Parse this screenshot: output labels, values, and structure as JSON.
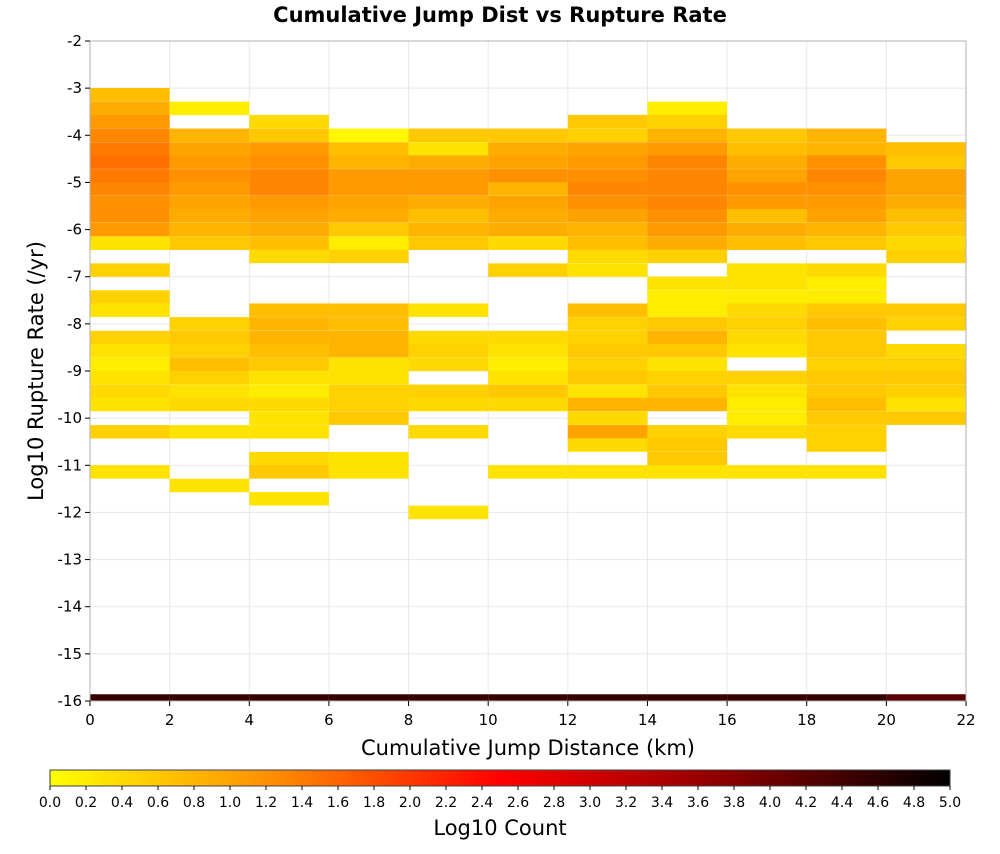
{
  "chart_data": {
    "type": "heatmap",
    "title": "Cumulative Jump Dist vs Rupture Rate",
    "xlabel": "Cumulative Jump Distance (km)",
    "ylabel": "Log10 Rupture Rate (/yr)",
    "xlim": [
      0,
      22
    ],
    "ylim": [
      -16,
      -2
    ],
    "x_ticks": [
      "0",
      "2",
      "4",
      "6",
      "8",
      "10",
      "12",
      "14",
      "16",
      "18",
      "20",
      "22"
    ],
    "y_ticks": [
      "-2",
      "-3",
      "-4",
      "-5",
      "-6",
      "-7",
      "-8",
      "-9",
      "-10",
      "-11",
      "-12",
      "-13",
      "-14",
      "-15",
      "-16"
    ],
    "grid": true,
    "colorbar": {
      "label": "Log10 Count",
      "range": [
        0,
        5
      ],
      "ticks": [
        "0.0",
        "0.2",
        "0.4",
        "0.6",
        "0.8",
        "1.0",
        "1.2",
        "1.4",
        "1.6",
        "1.8",
        "2.0",
        "2.2",
        "2.4",
        "2.6",
        "2.8",
        "3.0",
        "3.2",
        "3.4",
        "3.6",
        "3.8",
        "4.0",
        "4.2",
        "4.4",
        "4.6",
        "4.8",
        "5.0"
      ],
      "colors": [
        "#ffff00",
        "#ff8c00",
        "#ff0000",
        "#8b0000",
        "#000000"
      ],
      "placement": "bottom"
    },
    "x_bin_width_km": 2,
    "y_bin_height_log10": 0.286,
    "columns": [
      {
        "x_start": 0,
        "cells": [
          [
            -3.14,
            0.7
          ],
          [
            -3.43,
            0.9
          ],
          [
            -3.71,
            1.1
          ],
          [
            -4.0,
            1.3
          ],
          [
            -4.29,
            1.4
          ],
          [
            -4.57,
            1.5
          ],
          [
            -4.86,
            1.4
          ],
          [
            -5.14,
            1.3
          ],
          [
            -5.43,
            1.2
          ],
          [
            -5.71,
            1.2
          ],
          [
            -6.0,
            1.1
          ],
          [
            -6.29,
            0.3
          ],
          [
            -6.86,
            0.5
          ],
          [
            -7.43,
            0.5
          ],
          [
            -7.71,
            0.3
          ],
          [
            -8.29,
            0.5
          ],
          [
            -8.57,
            0.3
          ],
          [
            -8.86,
            0.2
          ],
          [
            -9.14,
            0.3
          ],
          [
            -9.43,
            0.4
          ],
          [
            -9.71,
            0.3
          ],
          [
            -10.29,
            0.5
          ],
          [
            -11.14,
            0.3
          ]
        ]
      },
      {
        "x_start": 2,
        "cells": [
          [
            -3.43,
            0.2
          ],
          [
            -4.0,
            0.8
          ],
          [
            -4.29,
            1.0
          ],
          [
            -4.57,
            1.1
          ],
          [
            -4.86,
            1.2
          ],
          [
            -5.14,
            1.1
          ],
          [
            -5.43,
            1.0
          ],
          [
            -5.71,
            0.9
          ],
          [
            -6.0,
            0.8
          ],
          [
            -6.29,
            0.6
          ],
          [
            -8.0,
            0.5
          ],
          [
            -8.29,
            0.6
          ],
          [
            -8.57,
            0.5
          ],
          [
            -8.86,
            0.7
          ],
          [
            -9.14,
            0.5
          ],
          [
            -9.43,
            0.3
          ],
          [
            -9.71,
            0.4
          ],
          [
            -10.29,
            0.3
          ],
          [
            -11.43,
            0.3
          ]
        ]
      },
      {
        "x_start": 4,
        "cells": [
          [
            -3.71,
            0.4
          ],
          [
            -4.0,
            0.6
          ],
          [
            -4.29,
            1.1
          ],
          [
            -4.57,
            1.2
          ],
          [
            -4.86,
            1.3
          ],
          [
            -5.14,
            1.3
          ],
          [
            -5.43,
            1.1
          ],
          [
            -5.71,
            1.0
          ],
          [
            -6.0,
            0.9
          ],
          [
            -6.29,
            0.7
          ],
          [
            -6.57,
            0.4
          ],
          [
            -7.71,
            0.7
          ],
          [
            -8.0,
            0.8
          ],
          [
            -8.29,
            0.8
          ],
          [
            -8.57,
            0.7
          ],
          [
            -8.86,
            0.6
          ],
          [
            -9.14,
            0.3
          ],
          [
            -9.43,
            0.2
          ],
          [
            -9.71,
            0.4
          ],
          [
            -10.0,
            0.3
          ],
          [
            -10.29,
            0.3
          ],
          [
            -10.86,
            0.4
          ],
          [
            -11.14,
            0.6
          ],
          [
            -11.71,
            0.3
          ]
        ]
      },
      {
        "x_start": 6,
        "cells": [
          [
            -4.0,
            0.1
          ],
          [
            -4.29,
            0.7
          ],
          [
            -4.57,
            0.8
          ],
          [
            -4.86,
            1.1
          ],
          [
            -5.14,
            1.1
          ],
          [
            -5.43,
            1.0
          ],
          [
            -5.71,
            0.9
          ],
          [
            -6.0,
            0.6
          ],
          [
            -6.29,
            0.2
          ],
          [
            -6.57,
            0.5
          ],
          [
            -7.71,
            0.7
          ],
          [
            -8.0,
            0.7
          ],
          [
            -8.29,
            0.8
          ],
          [
            -8.57,
            0.8
          ],
          [
            -8.86,
            0.3
          ],
          [
            -9.14,
            0.3
          ],
          [
            -9.43,
            0.5
          ],
          [
            -9.71,
            0.5
          ],
          [
            -10.0,
            0.6
          ],
          [
            -10.86,
            0.3
          ],
          [
            -11.14,
            0.3
          ]
        ]
      },
      {
        "x_start": 8,
        "cells": [
          [
            -4.0,
            0.6
          ],
          [
            -4.29,
            0.3
          ],
          [
            -4.57,
            0.9
          ],
          [
            -4.86,
            1.1
          ],
          [
            -5.14,
            1.1
          ],
          [
            -5.43,
            0.9
          ],
          [
            -5.71,
            0.7
          ],
          [
            -6.0,
            0.8
          ],
          [
            -6.29,
            0.6
          ],
          [
            -7.71,
            0.3
          ],
          [
            -8.29,
            0.4
          ],
          [
            -8.57,
            0.5
          ],
          [
            -8.86,
            0.4
          ],
          [
            -9.43,
            0.5
          ],
          [
            -9.71,
            0.4
          ],
          [
            -10.29,
            0.4
          ],
          [
            -12.0,
            0.3
          ]
        ]
      },
      {
        "x_start": 10,
        "cells": [
          [
            -4.0,
            0.6
          ],
          [
            -4.29,
            0.9
          ],
          [
            -4.57,
            1.0
          ],
          [
            -4.86,
            1.2
          ],
          [
            -5.14,
            0.8
          ],
          [
            -5.43,
            1.0
          ],
          [
            -5.71,
            0.9
          ],
          [
            -6.0,
            0.9
          ],
          [
            -6.29,
            0.4
          ],
          [
            -6.86,
            0.5
          ],
          [
            -8.29,
            0.4
          ],
          [
            -8.57,
            0.3
          ],
          [
            -8.86,
            0.2
          ],
          [
            -9.14,
            0.3
          ],
          [
            -9.43,
            0.6
          ],
          [
            -9.71,
            0.4
          ],
          [
            -11.14,
            0.3
          ]
        ]
      },
      {
        "x_start": 12,
        "cells": [
          [
            -3.71,
            0.6
          ],
          [
            -4.0,
            0.5
          ],
          [
            -4.29,
            1.0
          ],
          [
            -4.57,
            1.1
          ],
          [
            -4.86,
            1.2
          ],
          [
            -5.14,
            1.3
          ],
          [
            -5.43,
            1.2
          ],
          [
            -5.71,
            1.0
          ],
          [
            -6.0,
            0.8
          ],
          [
            -6.29,
            0.7
          ],
          [
            -6.57,
            0.4
          ],
          [
            -6.86,
            0.3
          ],
          [
            -7.71,
            0.7
          ],
          [
            -8.0,
            0.5
          ],
          [
            -8.29,
            0.5
          ],
          [
            -8.57,
            0.6
          ],
          [
            -8.86,
            0.5
          ],
          [
            -9.14,
            0.6
          ],
          [
            -9.43,
            0.3
          ],
          [
            -9.71,
            0.8
          ],
          [
            -10.0,
            0.4
          ],
          [
            -10.29,
            1.0
          ],
          [
            -10.57,
            0.4
          ],
          [
            -11.14,
            0.3
          ]
        ]
      },
      {
        "x_start": 14,
        "cells": [
          [
            -3.43,
            0.2
          ],
          [
            -3.71,
            0.5
          ],
          [
            -4.0,
            0.8
          ],
          [
            -4.29,
            1.1
          ],
          [
            -4.57,
            1.3
          ],
          [
            -4.86,
            1.3
          ],
          [
            -5.14,
            1.3
          ],
          [
            -5.43,
            1.3
          ],
          [
            -5.71,
            1.2
          ],
          [
            -6.0,
            1.1
          ],
          [
            -6.29,
            0.9
          ],
          [
            -6.57,
            0.5
          ],
          [
            -7.14,
            0.3
          ],
          [
            -7.43,
            0.2
          ],
          [
            -7.71,
            0.2
          ],
          [
            -8.0,
            0.6
          ],
          [
            -8.29,
            0.8
          ],
          [
            -8.57,
            0.6
          ],
          [
            -8.86,
            0.3
          ],
          [
            -9.14,
            0.5
          ],
          [
            -9.43,
            0.6
          ],
          [
            -9.71,
            0.8
          ],
          [
            -10.29,
            0.5
          ],
          [
            -10.57,
            0.6
          ],
          [
            -10.86,
            0.6
          ],
          [
            -11.14,
            0.3
          ]
        ]
      },
      {
        "x_start": 16,
        "cells": [
          [
            -4.0,
            0.6
          ],
          [
            -4.29,
            0.7
          ],
          [
            -4.57,
            0.9
          ],
          [
            -4.86,
            1.0
          ],
          [
            -5.14,
            1.2
          ],
          [
            -5.43,
            1.1
          ],
          [
            -5.71,
            0.7
          ],
          [
            -6.0,
            0.9
          ],
          [
            -6.29,
            0.7
          ],
          [
            -6.86,
            0.3
          ],
          [
            -7.14,
            0.3
          ],
          [
            -7.43,
            0.2
          ],
          [
            -7.71,
            0.4
          ],
          [
            -8.0,
            0.5
          ],
          [
            -8.29,
            0.4
          ],
          [
            -8.57,
            0.3
          ],
          [
            -9.14,
            0.5
          ],
          [
            -9.43,
            0.3
          ],
          [
            -9.71,
            0.2
          ],
          [
            -10.0,
            0.2
          ],
          [
            -10.29,
            0.4
          ],
          [
            -11.14,
            0.3
          ]
        ]
      },
      {
        "x_start": 18,
        "cells": [
          [
            -4.0,
            0.8
          ],
          [
            -4.29,
            0.8
          ],
          [
            -4.57,
            1.2
          ],
          [
            -4.86,
            1.3
          ],
          [
            -5.14,
            1.2
          ],
          [
            -5.43,
            1.1
          ],
          [
            -5.71,
            1.0
          ],
          [
            -6.0,
            0.8
          ],
          [
            -6.29,
            0.6
          ],
          [
            -6.86,
            0.4
          ],
          [
            -7.14,
            0.2
          ],
          [
            -7.43,
            0.2
          ],
          [
            -7.71,
            0.6
          ],
          [
            -8.0,
            0.7
          ],
          [
            -8.29,
            0.6
          ],
          [
            -8.57,
            0.6
          ],
          [
            -8.86,
            0.5
          ],
          [
            -9.14,
            0.6
          ],
          [
            -9.43,
            0.6
          ],
          [
            -9.71,
            0.7
          ],
          [
            -10.0,
            0.6
          ],
          [
            -10.29,
            0.5
          ],
          [
            -10.57,
            0.5
          ],
          [
            -11.14,
            0.3
          ]
        ]
      },
      {
        "x_start": 20,
        "cells": [
          [
            -4.29,
            0.7
          ],
          [
            -4.57,
            0.6
          ],
          [
            -4.86,
            1.0
          ],
          [
            -5.14,
            1.0
          ],
          [
            -5.43,
            0.9
          ],
          [
            -5.71,
            0.7
          ],
          [
            -6.0,
            0.6
          ],
          [
            -6.29,
            0.4
          ],
          [
            -6.57,
            0.5
          ],
          [
            -7.71,
            0.6
          ],
          [
            -8.0,
            0.5
          ],
          [
            -8.57,
            0.4
          ],
          [
            -8.86,
            0.5
          ],
          [
            -9.14,
            0.6
          ],
          [
            -9.43,
            0.5
          ],
          [
            -9.71,
            0.3
          ],
          [
            -10.0,
            0.6
          ]
        ]
      }
    ],
    "bottom_row": {
      "y": -16,
      "values": [
        4.5,
        4.5,
        4.5,
        4.5,
        4.5,
        4.5,
        4.5,
        4.5,
        4.5,
        4.5,
        4.2
      ]
    }
  }
}
